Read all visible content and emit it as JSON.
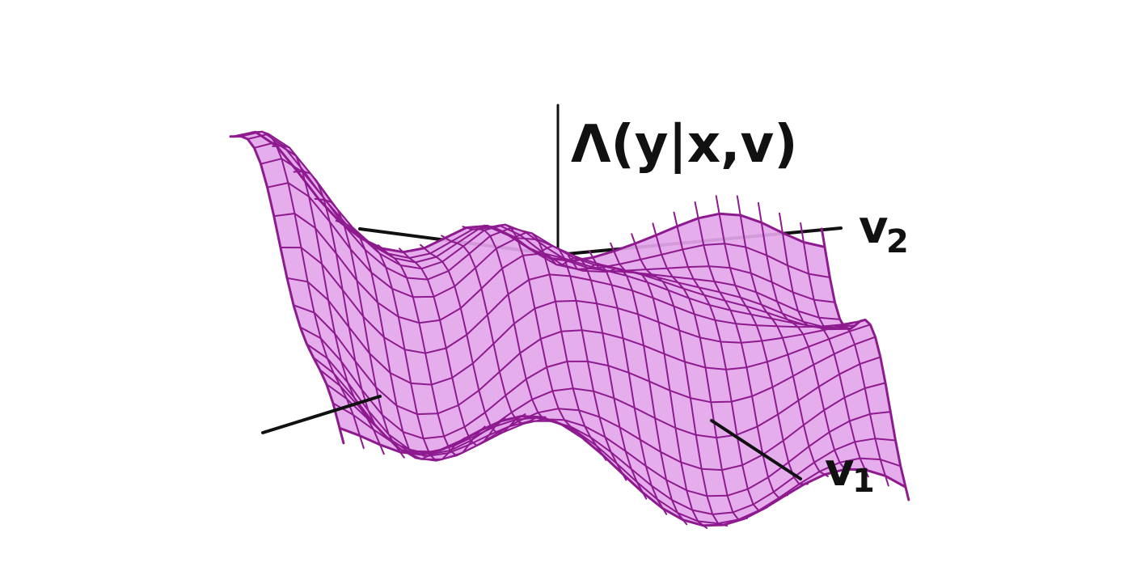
{
  "title": "",
  "labels": {
    "z_axis": "Λ(y|x,v)",
    "axis_2": "v",
    "axis_2_sub": "2",
    "axis_1": "v",
    "axis_1_sub": "1"
  },
  "colors": {
    "surface_fill": "#e3a6ea",
    "grid_line": "#8e1a8f",
    "axis": "#111111",
    "background": "#ffffff"
  }
}
